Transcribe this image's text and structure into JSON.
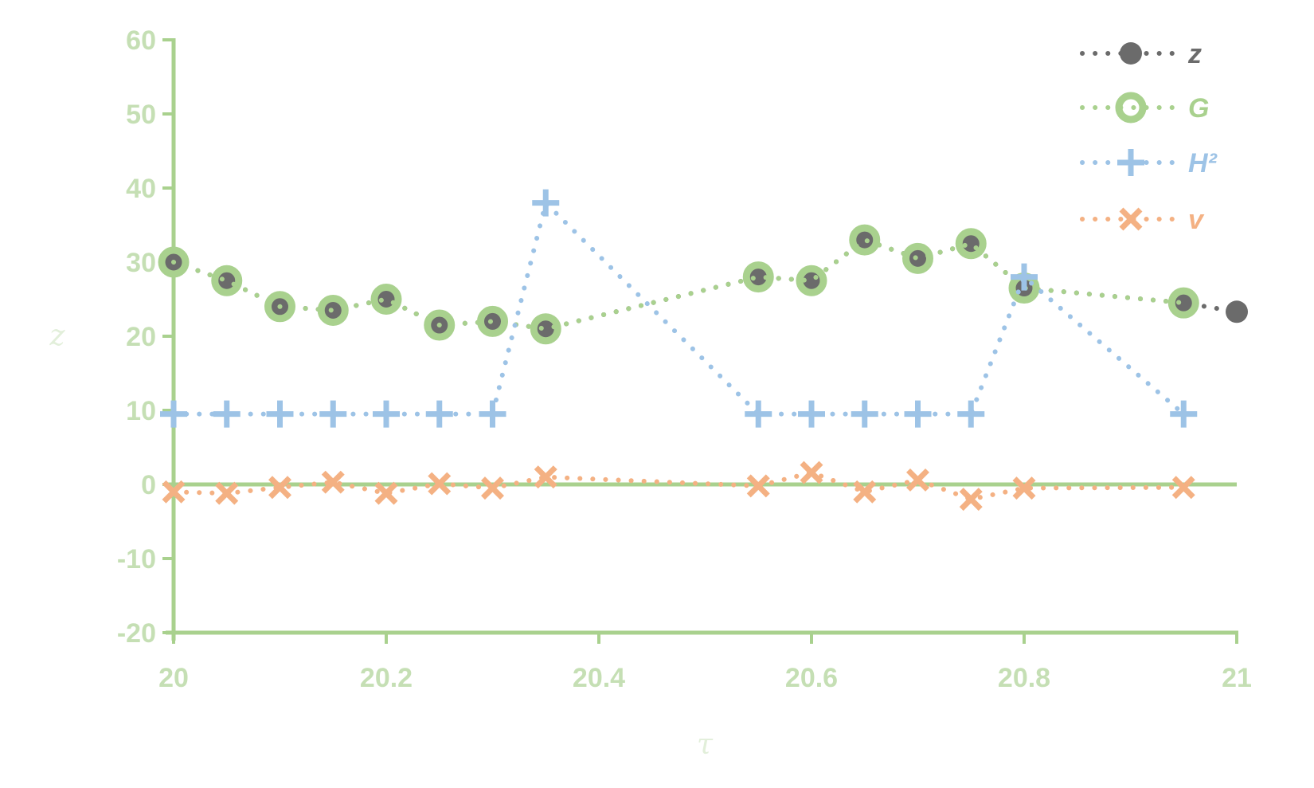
{
  "chart_data": {
    "type": "line",
    "title": "",
    "xlabel": "τ",
    "ylabel": "z",
    "xlim": [
      20,
      21
    ],
    "ylim": [
      -20,
      60
    ],
    "x_ticks": [
      "20",
      "20.2",
      "20.4",
      "20.6",
      "20.8",
      "21"
    ],
    "y_ticks": [
      "60",
      "50",
      "40",
      "30",
      "20",
      "10",
      "0",
      "-10",
      "-20"
    ],
    "legend_position": "top-right",
    "grid": false,
    "series": [
      {
        "name": "z",
        "color": "#6b6b6b",
        "marker": "circle",
        "x": [
          20.0,
          20.05,
          20.1,
          20.15,
          20.2,
          20.25,
          20.3,
          20.35,
          20.55,
          20.6,
          20.65,
          20.7,
          20.75,
          20.8,
          20.95,
          21.0
        ],
        "y": [
          30,
          27.5,
          24,
          23.5,
          25,
          21.5,
          22,
          21,
          28,
          27.5,
          33,
          30.5,
          32.5,
          26.5,
          24.5,
          23.3
        ]
      },
      {
        "name": "G",
        "color": "#a9d18e",
        "marker": "ring",
        "x": [
          20.0,
          20.05,
          20.1,
          20.15,
          20.2,
          20.25,
          20.3,
          20.35,
          20.55,
          20.6,
          20.65,
          20.7,
          20.75,
          20.8,
          20.95
        ],
        "y": [
          30,
          27.5,
          24,
          23.5,
          25,
          21.5,
          22,
          21,
          28,
          27.5,
          33,
          30.5,
          32.5,
          26.5,
          24.5
        ]
      },
      {
        "name": "H²",
        "color": "#9dc3e6",
        "marker": "plus",
        "x": [
          20.0,
          20.05,
          20.1,
          20.15,
          20.2,
          20.25,
          20.3,
          20.35,
          20.55,
          20.6,
          20.65,
          20.7,
          20.75,
          20.8,
          20.95
        ],
        "y": [
          9.5,
          9.5,
          9.5,
          9.5,
          9.5,
          9.5,
          9.5,
          38,
          9.5,
          9.5,
          9.5,
          9.5,
          9.5,
          28,
          9.5
        ]
      },
      {
        "name": "v",
        "color": "#f4b183",
        "marker": "cross",
        "x": [
          20.0,
          20.05,
          20.1,
          20.15,
          20.2,
          20.25,
          20.3,
          20.35,
          20.55,
          20.6,
          20.65,
          20.7,
          20.75,
          20.8,
          20.95
        ],
        "y": [
          -1,
          -1.2,
          -0.4,
          0.3,
          -1.2,
          0.1,
          -0.5,
          1,
          -0.2,
          1.6,
          -1,
          0.6,
          -2,
          -0.5,
          -0.4
        ]
      }
    ]
  },
  "colors": {
    "axis": "#a9d18e",
    "tick_text": "#c5dfb4",
    "axis_title": "#e2efda"
  }
}
